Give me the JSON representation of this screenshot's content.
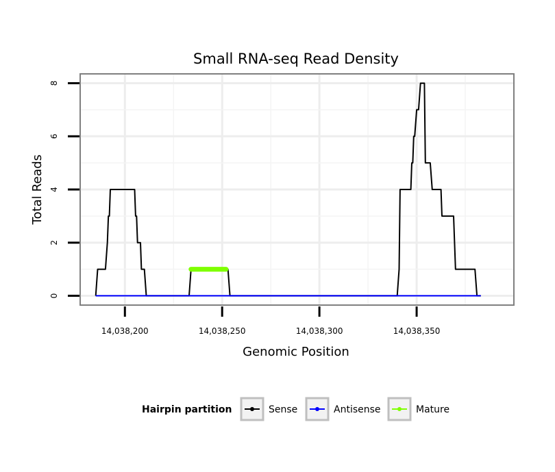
{
  "chart_data": {
    "type": "line",
    "title": "Small RNA-seq Read Density",
    "xlabel": "Genomic Position",
    "ylabel": "Total Reads",
    "xlim": [
      14038177,
      14038400
    ],
    "ylim": [
      -0.35,
      8.35
    ],
    "x_ticks": [
      14038200,
      14038250,
      14038300,
      14038350
    ],
    "x_tick_labels": [
      "14,038,200",
      "14,038,250",
      "14,038,300",
      "14,038,350"
    ],
    "y_ticks": [
      0,
      2,
      4,
      6,
      8
    ],
    "y_tick_labels": [
      "0",
      "2",
      "4",
      "6",
      "8"
    ],
    "grid": true,
    "legend_position": "bottom",
    "legend_title": "Hairpin partition",
    "series": [
      {
        "name": "Sense",
        "color": "#000000",
        "x": [
          14038185,
          14038186,
          14038186.5,
          14038190,
          14038191,
          14038191.5,
          14038192,
          14038192.5,
          14038193,
          14038205,
          14038205.5,
          14038206,
          14038206.5,
          14038207,
          14038207.5,
          14038208,
          14038208.5,
          14038209,
          14038209.5,
          14038210,
          14038211,
          14038218,
          14038233,
          14038234,
          14038252,
          14038253,
          14038254,
          14038340,
          14038341,
          14038341.5,
          14038347,
          14038347.5,
          14038348,
          14038348.5,
          14038349,
          14038350,
          14038351,
          14038352,
          14038353,
          14038354,
          14038354.5,
          14038355,
          14038356,
          14038357,
          14038358,
          14038362,
          14038362.5,
          14038363,
          14038363.5,
          14038364,
          14038369,
          14038370,
          14038373,
          14038374,
          14038380,
          14038381,
          14038383
        ],
        "y": [
          0,
          1,
          1,
          1,
          2,
          3,
          3,
          4,
          4,
          4,
          3,
          3,
          2,
          2,
          2,
          2,
          1,
          1,
          1,
          1,
          0,
          0,
          0,
          1,
          1,
          1,
          0,
          0,
          1,
          4,
          4,
          5,
          5,
          6,
          6,
          7,
          7,
          8,
          8,
          8,
          5,
          5,
          5,
          5,
          4,
          4,
          4,
          3,
          3,
          3,
          3,
          1,
          1,
          1,
          1,
          0,
          0
        ]
      },
      {
        "name": "Antisense",
        "color": "#0000ff",
        "x": [
          14038185,
          14038383
        ],
        "y": [
          0,
          0
        ]
      },
      {
        "name": "Mature",
        "color": "#7fff00",
        "x": [
          14038234,
          14038252
        ],
        "y": [
          1,
          1
        ]
      }
    ]
  }
}
